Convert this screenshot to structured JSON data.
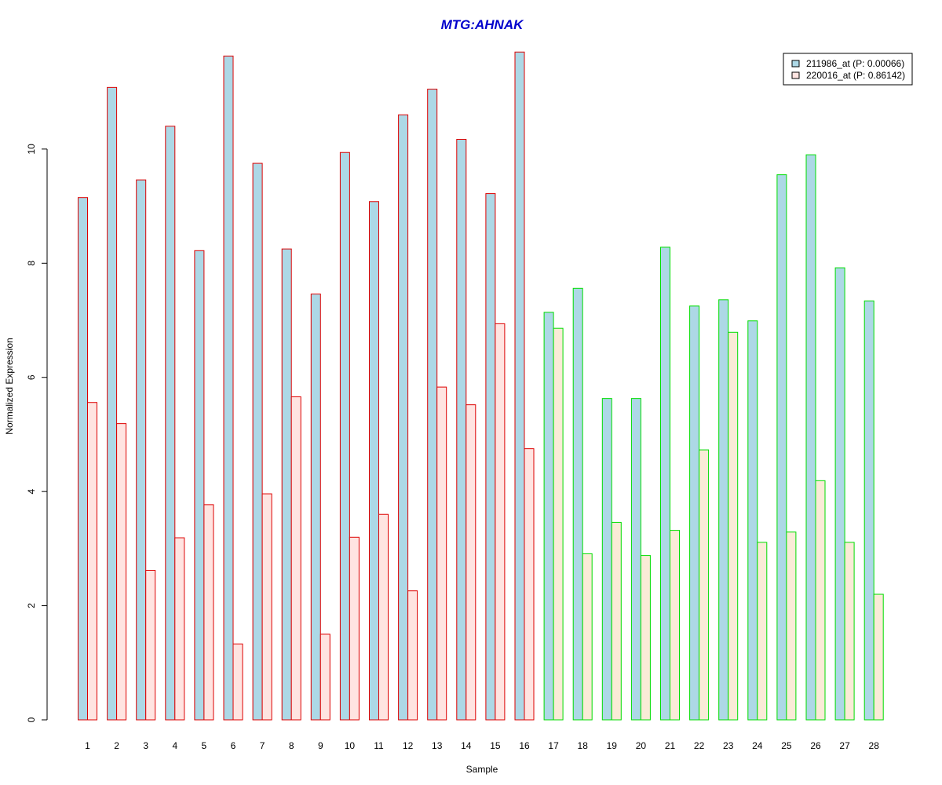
{
  "chart_data": {
    "type": "bar",
    "title": "MTG:AHNAK",
    "xlabel": "Sample",
    "ylabel": "Normalized Expression",
    "ylim": [
      0,
      11.8
    ],
    "yticks": [
      0,
      2,
      4,
      6,
      8,
      10
    ],
    "categories": [
      "1",
      "2",
      "3",
      "4",
      "5",
      "6",
      "7",
      "8",
      "9",
      "10",
      "11",
      "12",
      "13",
      "14",
      "15",
      "16",
      "17",
      "18",
      "19",
      "20",
      "21",
      "22",
      "23",
      "24",
      "25",
      "26",
      "27",
      "28"
    ],
    "groups": [
      {
        "from": 1,
        "to": 16,
        "border_color": "#dd0000"
      },
      {
        "from": 17,
        "to": 28,
        "border_color": "#00dd00"
      }
    ],
    "series": [
      {
        "name": "211986_at (P: 0.00066)",
        "fill": "#add8e6",
        "values": [
          9.15,
          11.08,
          9.46,
          10.4,
          8.22,
          11.63,
          9.75,
          8.25,
          7.46,
          9.94,
          9.08,
          10.6,
          11.05,
          10.17,
          9.22,
          11.7,
          7.14,
          7.56,
          5.63,
          5.63,
          8.28,
          7.25,
          7.36,
          6.99,
          9.55,
          9.9,
          7.92,
          7.34
        ]
      },
      {
        "name": "220016_at (P: 0.86142)",
        "fill_group1": "#ffe4e1",
        "fill_group2": "#faebd7",
        "values": [
          5.56,
          5.19,
          2.62,
          3.19,
          3.77,
          1.33,
          3.96,
          5.66,
          1.5,
          3.2,
          3.6,
          2.26,
          5.83,
          5.52,
          6.94,
          4.75,
          6.86,
          2.91,
          3.46,
          2.88,
          3.32,
          4.73,
          6.79,
          3.11,
          3.29,
          4.19,
          3.11,
          2.2
        ]
      }
    ],
    "legend": {
      "position": "top-right"
    },
    "colors": {
      "title": "#0000cc",
      "axis": "#000000"
    }
  }
}
